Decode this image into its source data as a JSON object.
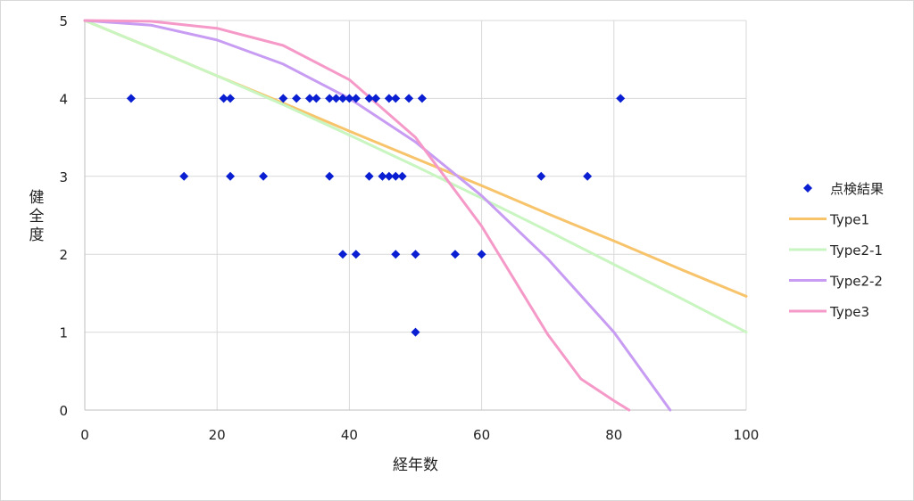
{
  "chart_data": {
    "type": "scatter",
    "title": "",
    "xlabel": "経年数",
    "ylabel": "健全度",
    "xlim": [
      0,
      100
    ],
    "ylim": [
      0,
      5
    ],
    "x_ticks": [
      0,
      20,
      40,
      60,
      80,
      100
    ],
    "y_ticks": [
      0,
      1,
      2,
      3,
      4,
      5
    ],
    "grid": true,
    "legend_position": "right",
    "colors": {
      "points": "#0a1fd1",
      "Type1": "#f7c46c",
      "Type2-1": "#c8f5c0",
      "Type2-2": "#c79cf2",
      "Type3": "#f59ac8",
      "grid": "#d9d9d9",
      "axis": "#bfbfbf"
    },
    "series": [
      {
        "name": "点検結果",
        "kind": "markers",
        "points": [
          [
            7,
            4
          ],
          [
            21,
            4
          ],
          [
            22,
            4
          ],
          [
            30,
            4
          ],
          [
            32,
            4
          ],
          [
            34,
            4
          ],
          [
            35,
            4
          ],
          [
            37,
            4
          ],
          [
            38,
            4
          ],
          [
            39,
            4
          ],
          [
            40,
            4
          ],
          [
            41,
            4
          ],
          [
            43,
            4
          ],
          [
            44,
            4
          ],
          [
            46,
            4
          ],
          [
            47,
            4
          ],
          [
            49,
            4
          ],
          [
            51,
            4
          ],
          [
            81,
            4
          ],
          [
            15,
            3
          ],
          [
            22,
            3
          ],
          [
            27,
            3
          ],
          [
            37,
            3
          ],
          [
            43,
            3
          ],
          [
            45,
            3
          ],
          [
            46,
            3
          ],
          [
            47,
            3
          ],
          [
            48,
            3
          ],
          [
            69,
            3
          ],
          [
            76,
            3
          ],
          [
            39,
            2
          ],
          [
            41,
            2
          ],
          [
            47,
            2
          ],
          [
            50,
            2
          ],
          [
            56,
            2
          ],
          [
            60,
            2
          ],
          [
            50,
            1
          ]
        ]
      },
      {
        "name": "Type1",
        "kind": "line",
        "x": [
          0,
          10,
          20,
          30,
          40,
          50,
          60,
          70,
          80,
          90,
          100
        ],
        "y": [
          5,
          4.65,
          4.29,
          3.94,
          3.58,
          3.23,
          2.88,
          2.52,
          2.17,
          1.81,
          1.46
        ]
      },
      {
        "name": "Type2-1",
        "kind": "line",
        "x": [
          0,
          10,
          20,
          30,
          40,
          50,
          60,
          70,
          80,
          90,
          100
        ],
        "y": [
          5,
          4.65,
          4.29,
          3.92,
          3.53,
          3.13,
          2.72,
          2.3,
          1.87,
          1.44,
          1.0
        ]
      },
      {
        "name": "Type2-2",
        "kind": "line",
        "x": [
          0,
          10,
          20,
          30,
          40,
          50,
          60,
          70,
          80,
          88.5
        ],
        "y": [
          5,
          4.94,
          4.75,
          4.44,
          4.0,
          3.44,
          2.75,
          1.94,
          1.0,
          0
        ]
      },
      {
        "name": "Type3",
        "kind": "line",
        "x": [
          0,
          10,
          20,
          30,
          40,
          50,
          60,
          70,
          75,
          80,
          82.3
        ],
        "y": [
          5,
          4.99,
          4.9,
          4.68,
          4.24,
          3.5,
          2.36,
          0.97,
          0.4,
          0.12,
          0
        ]
      }
    ]
  }
}
